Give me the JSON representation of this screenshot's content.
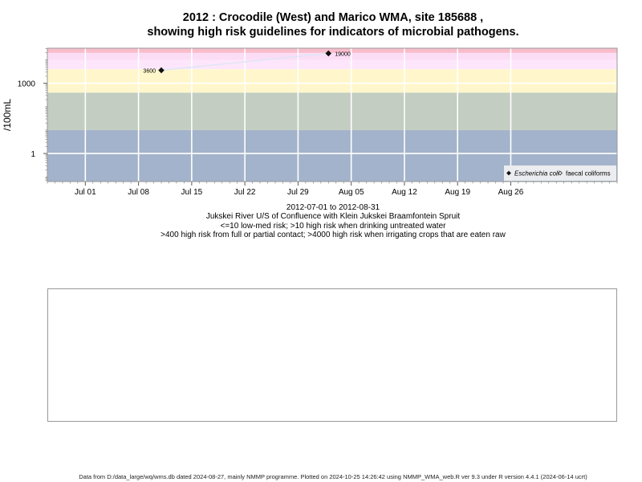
{
  "title_line1": "2012 : Crocodile (West) and Marico WMA, site 185688 ,",
  "title_line2": "showing high risk guidelines for indicators of microbial pathogens.",
  "chart_data": {
    "type": "scatter",
    "y_scale": "log10",
    "ylabel": "/100mL",
    "xlim": [
      "2012-06-26",
      "2012-09-09"
    ],
    "ylim_log10": [
      -1.2,
      4.5
    ],
    "y_ticks": [
      {
        "value": 1,
        "label": "1"
      },
      {
        "value": 1000,
        "label": "1000"
      }
    ],
    "x_ticks": [
      {
        "date": "2012-07-01",
        "label": "Jul 01"
      },
      {
        "date": "2012-07-08",
        "label": "Jul 08"
      },
      {
        "date": "2012-07-15",
        "label": "Jul 15"
      },
      {
        "date": "2012-07-22",
        "label": "Jul 22"
      },
      {
        "date": "2012-07-29",
        "label": "Jul 29"
      },
      {
        "date": "2012-08-05",
        "label": "Aug 05"
      },
      {
        "date": "2012-08-12",
        "label": "Aug 12"
      },
      {
        "date": "2012-08-19",
        "label": "Aug 19"
      },
      {
        "date": "2012-08-26",
        "label": "Aug 26"
      }
    ],
    "bands": [
      {
        "from": 0.03,
        "to": 10,
        "color": "#a3b3cb"
      },
      {
        "from": 10,
        "to": 400,
        "color": "#c3cdc1"
      },
      {
        "from": 400,
        "to": 4000,
        "color": "#fff7cb"
      },
      {
        "from": 4000,
        "to": 10000,
        "color": "#fde6fb"
      },
      {
        "from": 10000,
        "to": 20000,
        "color": "#fbddf6"
      },
      {
        "from": 20000,
        "to": 40000,
        "color": "#f8bccb"
      }
    ],
    "series": [
      {
        "name": "Escherichia coli",
        "marker": "filled-diamond",
        "points": [
          {
            "date": "2012-07-11",
            "value": 3600,
            "label": "3600"
          },
          {
            "date": "2012-08-02",
            "value": 19000,
            "label": "19000"
          }
        ]
      },
      {
        "name": "faecal coliforms",
        "marker": "open-diamond",
        "points": []
      }
    ],
    "legend_position": "bottom-right"
  },
  "caption": {
    "date_range": "2012-07-01 to 2012-08-31",
    "site_name": "Jukskei River U/S of Confluence with Klein Jukskei Braamfontein Spruit",
    "line_low": "<=10 low-med risk; >10 high risk when drinking untreated water",
    "line_high": ">400 high risk from full or partial contact; >4000 high risk when irrigating crops that are eaten raw"
  },
  "footer": "Data from D:/data_large/wq/wms.db dated 2024-08-27, mainly NMMP programme. Plotted on 2024-10-25 14:26:42 using NMMP_WMA_web.R ver 9.3 under R version 4.4.1 (2024-06-14 ucrt)"
}
